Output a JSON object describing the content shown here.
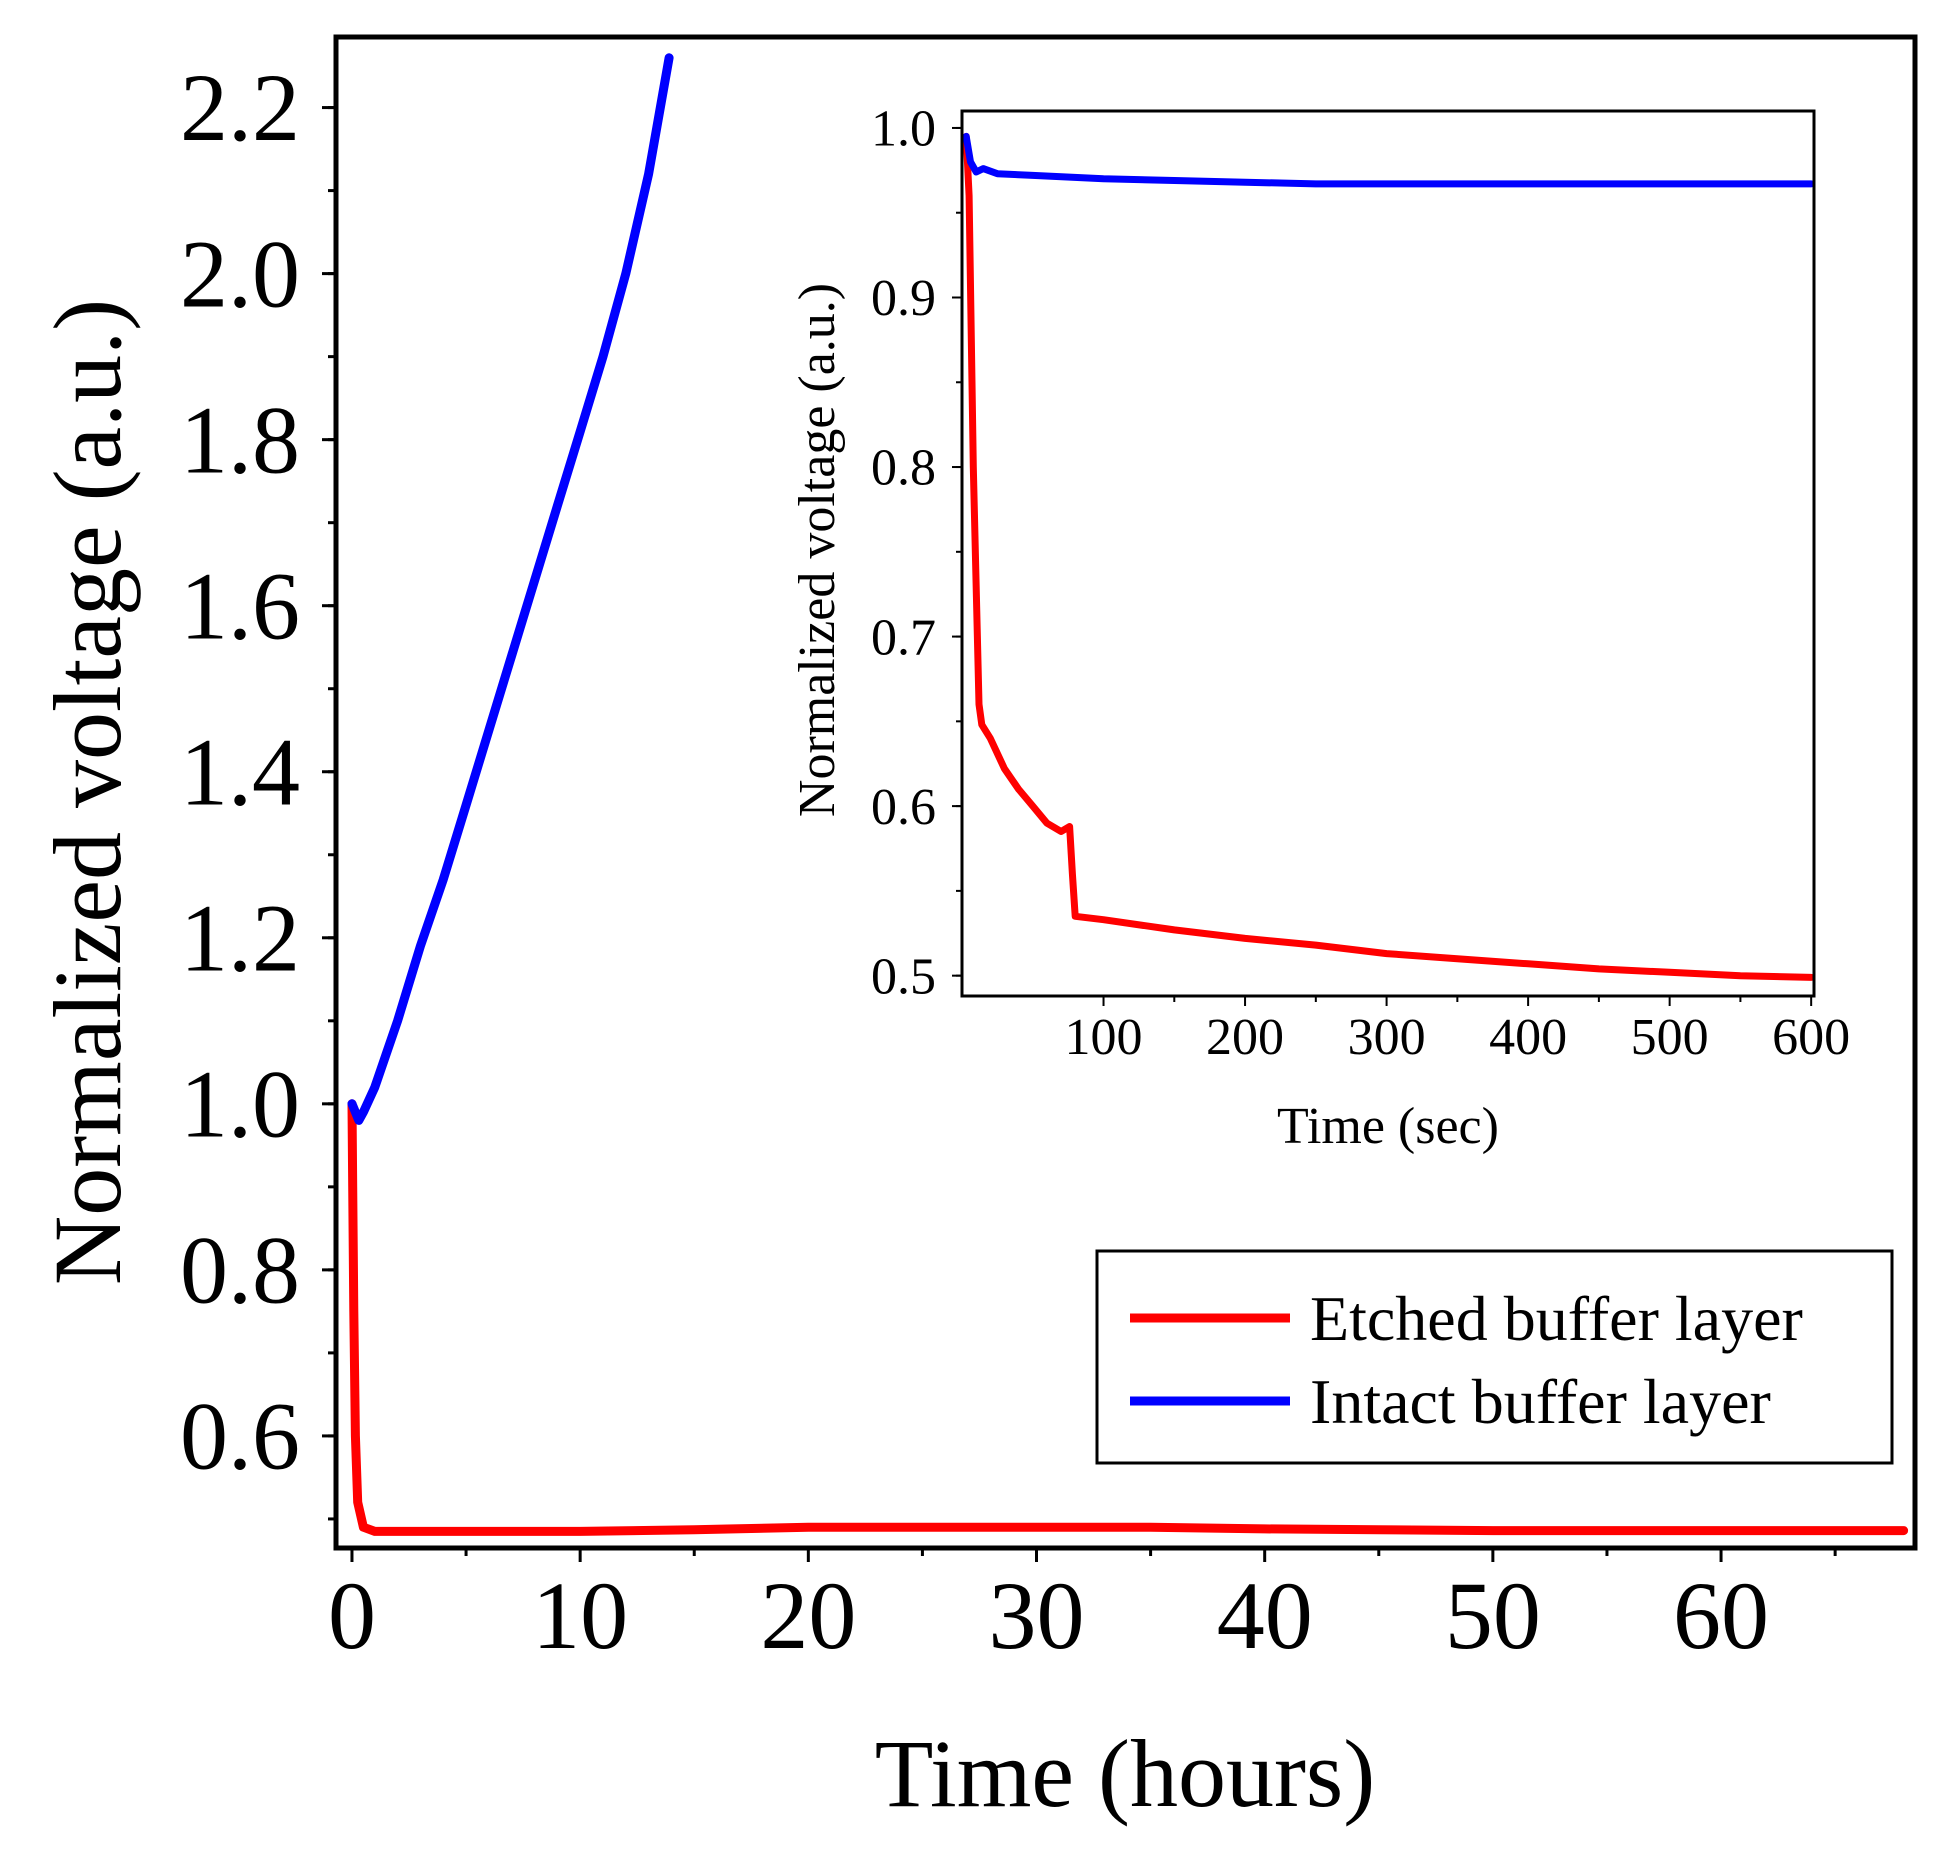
{
  "chart_data": [
    {
      "id": "main",
      "type": "line",
      "xlabel": "Time (hours)",
      "ylabel": "Normalized voltage (a.u.)",
      "xlim": [
        -0.7,
        68.5
      ],
      "ylim": [
        0.465,
        2.285
      ],
      "xticks": [
        0,
        10,
        20,
        30,
        40,
        50,
        60
      ],
      "xtick_labels": [
        "0",
        "10",
        "20",
        "30",
        "40",
        "50",
        "60"
      ],
      "yticks": [
        0.6,
        0.8,
        1.0,
        1.2,
        1.4,
        1.6,
        1.8,
        2.0,
        2.2
      ],
      "ytick_labels": [
        "0.6",
        "0.8",
        "1.0",
        "1.2",
        "1.4",
        "1.6",
        "1.8",
        "2.0",
        "2.2"
      ],
      "legend_position": "bottom-right",
      "series": [
        {
          "name": "Etched buffer layer",
          "color": "#ff0000",
          "x": [
            0,
            0.03,
            0.08,
            0.15,
            0.25,
            0.5,
            1,
            2,
            5,
            10,
            15,
            20,
            25,
            30,
            35,
            40,
            45,
            50,
            55,
            60,
            65,
            68
          ],
          "y": [
            1.0,
            0.9,
            0.75,
            0.6,
            0.52,
            0.49,
            0.485,
            0.485,
            0.485,
            0.485,
            0.487,
            0.49,
            0.49,
            0.49,
            0.49,
            0.488,
            0.487,
            0.486,
            0.486,
            0.486,
            0.486,
            0.486
          ]
        },
        {
          "name": "Intact buffer layer",
          "color": "#0000ff",
          "x": [
            0,
            0.3,
            0.5,
            1,
            2,
            3,
            4,
            5,
            6,
            7,
            8,
            9,
            10,
            11,
            12,
            13,
            13.9
          ],
          "y": [
            1.0,
            0.98,
            0.99,
            1.02,
            1.1,
            1.19,
            1.27,
            1.36,
            1.45,
            1.54,
            1.63,
            1.72,
            1.81,
            1.9,
            2.0,
            2.12,
            2.26
          ]
        }
      ]
    },
    {
      "id": "inset",
      "type": "line",
      "xlabel": "Time (sec)",
      "ylabel": "Normalized voltage (a.u.)",
      "xlim": [
        0,
        602
      ],
      "ylim": [
        0.488,
        1.01
      ],
      "xticks": [
        100,
        200,
        300,
        400,
        500,
        600
      ],
      "xtick_labels": [
        "100",
        "200",
        "300",
        "400",
        "500",
        "600"
      ],
      "yticks": [
        0.5,
        0.6,
        0.7,
        0.8,
        0.9,
        1.0
      ],
      "ytick_labels": [
        "0.5",
        "0.6",
        "0.7",
        "0.8",
        "0.9",
        "1.0"
      ],
      "series": [
        {
          "name": "Etched buffer layer",
          "color": "#ff0000",
          "x": [
            3,
            5,
            8,
            12,
            14,
            20,
            30,
            40,
            50,
            60,
            70,
            76,
            78,
            80,
            100,
            150,
            200,
            250,
            300,
            350,
            400,
            450,
            500,
            550,
            600
          ],
          "y": [
            0.995,
            0.96,
            0.8,
            0.66,
            0.648,
            0.64,
            0.622,
            0.61,
            0.6,
            0.59,
            0.585,
            0.588,
            0.56,
            0.535,
            0.533,
            0.527,
            0.522,
            0.518,
            0.513,
            0.51,
            0.507,
            0.504,
            0.502,
            0.5,
            0.499
          ]
        },
        {
          "name": "Intact buffer layer",
          "color": "#0000ff",
          "x": [
            3,
            6,
            10,
            15,
            25,
            50,
            100,
            150,
            200,
            250,
            300,
            350,
            400,
            450,
            500,
            550,
            600
          ],
          "y": [
            0.995,
            0.98,
            0.974,
            0.976,
            0.973,
            0.972,
            0.97,
            0.969,
            0.968,
            0.967,
            0.967,
            0.967,
            0.967,
            0.967,
            0.967,
            0.967,
            0.967
          ]
        }
      ]
    }
  ]
}
